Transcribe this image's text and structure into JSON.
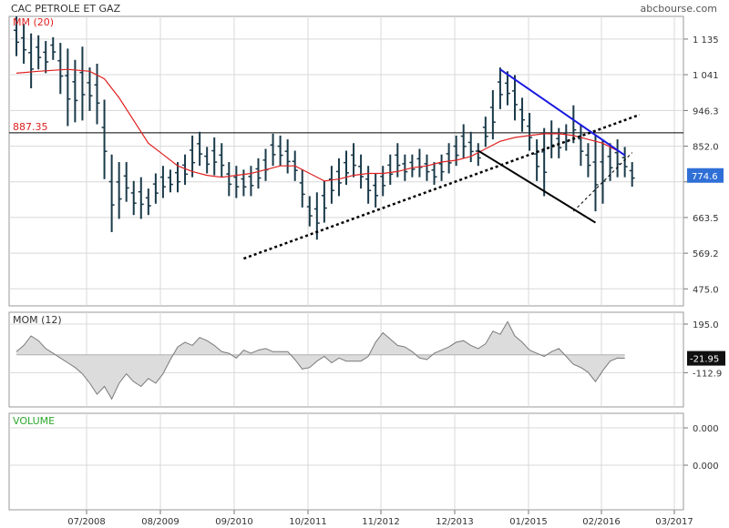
{
  "header": {
    "title": "CAC PETROLE ET GAZ",
    "site": "abcbourse.com"
  },
  "colors": {
    "price_bar": "#1a3a4a",
    "ma": "#e02020",
    "resistance": "#1a1ae0",
    "trendline": "#000000",
    "grid": "#d8d8d8",
    "mom_fill": "#dcdcdc",
    "mom_line": "#7a7a7a",
    "last_price_bg": "#2f6fd6",
    "volume_label": "#2ea82e"
  },
  "chart_data": [
    {
      "type": "ohlc",
      "panel": "price",
      "legend": "MM (20)",
      "x_tick_labels": [
        "07/2008",
        "08/2009",
        "09/2010",
        "10/2011",
        "11/2012",
        "12/2013",
        "01/2015",
        "02/2016",
        "03/2017"
      ],
      "y_ticks": [
        475.0,
        569.2,
        663.5,
        757.8,
        852.0,
        946.3,
        1041,
        1135
      ],
      "y_tick_labels": [
        "475.0",
        "569.2",
        "663.5",
        "",
        "852.0",
        "946.3",
        "1 041",
        "1 135"
      ],
      "ylim": [
        430,
        1195
      ],
      "xlim": [
        0,
        92
      ],
      "horizontal_line": {
        "value": 887.35,
        "label": "887.35"
      },
      "last_price": {
        "value": 774.6,
        "label": "774.6"
      },
      "bars": [
        {
          "x": 1,
          "h": 1195,
          "l": 1090
        },
        {
          "x": 2,
          "h": 1175,
          "l": 1070
        },
        {
          "x": 3,
          "h": 1150,
          "l": 1005
        },
        {
          "x": 4,
          "h": 1145,
          "l": 1055
        },
        {
          "x": 5,
          "h": 1130,
          "l": 1045
        },
        {
          "x": 6,
          "h": 1140,
          "l": 1080
        },
        {
          "x": 7,
          "h": 1125,
          "l": 990
        },
        {
          "x": 8,
          "h": 1110,
          "l": 905
        },
        {
          "x": 9,
          "h": 1080,
          "l": 915
        },
        {
          "x": 10,
          "h": 1115,
          "l": 920
        },
        {
          "x": 11,
          "h": 1060,
          "l": 945
        },
        {
          "x": 12,
          "h": 1070,
          "l": 910
        },
        {
          "x": 13,
          "h": 975,
          "l": 765
        },
        {
          "x": 14,
          "h": 830,
          "l": 625
        },
        {
          "x": 15,
          "h": 810,
          "l": 660
        },
        {
          "x": 16,
          "h": 810,
          "l": 705
        },
        {
          "x": 17,
          "h": 760,
          "l": 670
        },
        {
          "x": 18,
          "h": 770,
          "l": 660
        },
        {
          "x": 19,
          "h": 740,
          "l": 670
        },
        {
          "x": 20,
          "h": 780,
          "l": 700
        },
        {
          "x": 21,
          "h": 800,
          "l": 715
        },
        {
          "x": 22,
          "h": 790,
          "l": 730
        },
        {
          "x": 23,
          "h": 810,
          "l": 730
        },
        {
          "x": 24,
          "h": 830,
          "l": 750
        },
        {
          "x": 25,
          "h": 880,
          "l": 770
        },
        {
          "x": 26,
          "h": 890,
          "l": 800
        },
        {
          "x": 27,
          "h": 850,
          "l": 780
        },
        {
          "x": 28,
          "h": 875,
          "l": 775
        },
        {
          "x": 29,
          "h": 860,
          "l": 770
        },
        {
          "x": 30,
          "h": 810,
          "l": 720
        },
        {
          "x": 31,
          "h": 800,
          "l": 715
        },
        {
          "x": 32,
          "h": 790,
          "l": 720
        },
        {
          "x": 33,
          "h": 800,
          "l": 720
        },
        {
          "x": 34,
          "h": 820,
          "l": 740
        },
        {
          "x": 35,
          "h": 845,
          "l": 760
        },
        {
          "x": 36,
          "h": 885,
          "l": 800
        },
        {
          "x": 37,
          "h": 880,
          "l": 800
        },
        {
          "x": 38,
          "h": 870,
          "l": 780
        },
        {
          "x": 39,
          "h": 840,
          "l": 760
        },
        {
          "x": 40,
          "h": 790,
          "l": 690
        },
        {
          "x": 41,
          "h": 720,
          "l": 640
        },
        {
          "x": 42,
          "h": 730,
          "l": 605
        },
        {
          "x": 43,
          "h": 760,
          "l": 650
        },
        {
          "x": 44,
          "h": 800,
          "l": 700
        },
        {
          "x": 45,
          "h": 820,
          "l": 720
        },
        {
          "x": 46,
          "h": 840,
          "l": 750
        },
        {
          "x": 47,
          "h": 860,
          "l": 770
        },
        {
          "x": 48,
          "h": 830,
          "l": 740
        },
        {
          "x": 49,
          "h": 800,
          "l": 700
        },
        {
          "x": 50,
          "h": 780,
          "l": 690
        },
        {
          "x": 51,
          "h": 800,
          "l": 720
        },
        {
          "x": 52,
          "h": 830,
          "l": 750
        },
        {
          "x": 53,
          "h": 860,
          "l": 770
        },
        {
          "x": 54,
          "h": 830,
          "l": 760
        },
        {
          "x": 55,
          "h": 830,
          "l": 770
        },
        {
          "x": 56,
          "h": 845,
          "l": 770
        },
        {
          "x": 57,
          "h": 830,
          "l": 760
        },
        {
          "x": 58,
          "h": 810,
          "l": 750
        },
        {
          "x": 59,
          "h": 830,
          "l": 760
        },
        {
          "x": 60,
          "h": 860,
          "l": 780
        },
        {
          "x": 61,
          "h": 880,
          "l": 800
        },
        {
          "x": 62,
          "h": 910,
          "l": 820
        },
        {
          "x": 63,
          "h": 890,
          "l": 810
        },
        {
          "x": 64,
          "h": 860,
          "l": 800
        },
        {
          "x": 65,
          "h": 930,
          "l": 850
        },
        {
          "x": 66,
          "h": 1000,
          "l": 870
        },
        {
          "x": 67,
          "h": 1060,
          "l": 950
        },
        {
          "x": 68,
          "h": 1050,
          "l": 960
        },
        {
          "x": 69,
          "h": 1040,
          "l": 920
        },
        {
          "x": 70,
          "h": 980,
          "l": 890
        },
        {
          "x": 71,
          "h": 940,
          "l": 840
        },
        {
          "x": 72,
          "h": 870,
          "l": 760
        },
        {
          "x": 73,
          "h": 900,
          "l": 720
        },
        {
          "x": 74,
          "h": 920,
          "l": 820
        },
        {
          "x": 75,
          "h": 900,
          "l": 820
        },
        {
          "x": 76,
          "h": 910,
          "l": 840
        },
        {
          "x": 77,
          "h": 960,
          "l": 860
        },
        {
          "x": 78,
          "h": 910,
          "l": 800
        },
        {
          "x": 79,
          "h": 860,
          "l": 770
        },
        {
          "x": 80,
          "h": 880,
          "l": 680
        },
        {
          "x": 81,
          "h": 870,
          "l": 700
        },
        {
          "x": 82,
          "h": 860,
          "l": 760
        },
        {
          "x": 83,
          "h": 870,
          "l": 770
        },
        {
          "x": 84,
          "h": 850,
          "l": 770
        },
        {
          "x": 85,
          "h": 810,
          "l": 745
        }
      ],
      "moving_average": [
        [
          1,
          1045
        ],
        [
          4,
          1050
        ],
        [
          8,
          1055
        ],
        [
          11,
          1050
        ],
        [
          13,
          1030
        ],
        [
          15,
          980
        ],
        [
          17,
          920
        ],
        [
          19,
          860
        ],
        [
          21,
          830
        ],
        [
          23,
          800
        ],
        [
          25,
          785
        ],
        [
          27,
          775
        ],
        [
          29,
          770
        ],
        [
          31,
          775
        ],
        [
          33,
          780
        ],
        [
          35,
          790
        ],
        [
          37,
          800
        ],
        [
          39,
          800
        ],
        [
          41,
          780
        ],
        [
          43,
          760
        ],
        [
          45,
          765
        ],
        [
          47,
          775
        ],
        [
          49,
          780
        ],
        [
          51,
          780
        ],
        [
          53,
          785
        ],
        [
          55,
          795
        ],
        [
          57,
          800
        ],
        [
          59,
          810
        ],
        [
          61,
          815
        ],
        [
          63,
          825
        ],
        [
          65,
          845
        ],
        [
          67,
          865
        ],
        [
          69,
          875
        ],
        [
          71,
          880
        ],
        [
          73,
          885
        ],
        [
          75,
          885
        ],
        [
          77,
          880
        ],
        [
          79,
          870
        ],
        [
          81,
          860
        ],
        [
          83,
          840
        ]
      ],
      "trendlines": [
        {
          "name": "support",
          "style": "dotted",
          "color": "#000000",
          "from": [
            32,
            555
          ],
          "to": [
            86,
            935
          ]
        },
        {
          "name": "resistance",
          "style": "solid",
          "color": "#1a1ae0",
          "from": [
            67,
            1055
          ],
          "to": [
            84,
            828
          ]
        },
        {
          "name": "lower-channel",
          "style": "solid",
          "color": "#000000",
          "from": [
            64,
            840
          ],
          "to": [
            80,
            650
          ]
        },
        {
          "name": "projection",
          "style": "dashed",
          "color": "#000000",
          "from": [
            77,
            680
          ],
          "to": [
            85,
            835
          ]
        }
      ]
    },
    {
      "type": "area",
      "panel": "momentum",
      "legend": "MOM (12)",
      "y_ticks": [
        195.0,
        -112.9
      ],
      "y_tick_labels": [
        "195.0",
        "-112.9"
      ],
      "ylim": [
        -330,
        270
      ],
      "last_value": {
        "value": -21.95,
        "label": "-21.95"
      },
      "x": [
        1,
        2,
        3,
        4,
        5,
        6,
        7,
        8,
        9,
        10,
        11,
        12,
        13,
        14,
        15,
        16,
        17,
        18,
        19,
        20,
        21,
        22,
        23,
        24,
        25,
        26,
        27,
        28,
        29,
        30,
        31,
        32,
        33,
        34,
        35,
        36,
        37,
        38,
        39,
        40,
        41,
        42,
        43,
        44,
        45,
        46,
        47,
        48,
        49,
        50,
        51,
        52,
        53,
        54,
        55,
        56,
        57,
        58,
        59,
        60,
        61,
        62,
        63,
        64,
        65,
        66,
        67,
        68,
        69,
        70,
        71,
        72,
        73,
        74,
        75,
        76,
        77,
        78,
        79,
        80,
        81,
        82,
        83,
        84
      ],
      "values": [
        20,
        60,
        120,
        90,
        40,
        10,
        -20,
        -50,
        -80,
        -120,
        -180,
        -250,
        -200,
        -280,
        -180,
        -120,
        -170,
        -200,
        -150,
        -180,
        -120,
        -30,
        50,
        80,
        60,
        110,
        90,
        60,
        20,
        10,
        -20,
        30,
        10,
        30,
        40,
        20,
        20,
        20,
        -30,
        -90,
        -80,
        -40,
        -10,
        -50,
        -20,
        -40,
        -40,
        -40,
        -10,
        80,
        140,
        100,
        60,
        50,
        20,
        -20,
        -30,
        10,
        30,
        50,
        80,
        90,
        60,
        40,
        70,
        150,
        130,
        210,
        120,
        80,
        30,
        10,
        -10,
        20,
        40,
        -10,
        -60,
        -80,
        -110,
        -170,
        -100,
        -40,
        -20,
        -22
      ]
    },
    {
      "type": "bar",
      "panel": "volume",
      "legend": "VOLUME",
      "y_ticks": [
        0.0,
        0.0
      ],
      "y_tick_labels": [
        "0.000",
        "0.000"
      ],
      "values": []
    }
  ]
}
